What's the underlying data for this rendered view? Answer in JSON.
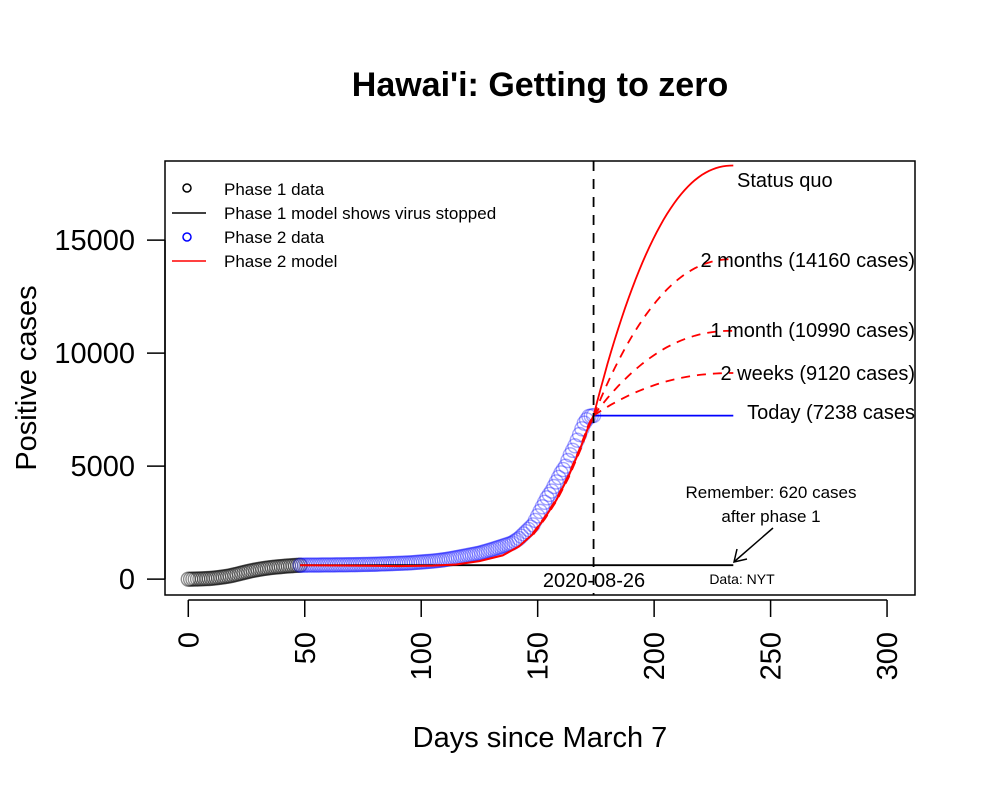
{
  "chart_data": {
    "type": "line",
    "title": "Hawai'i: Getting to zero",
    "xlabel": "Days since March 7",
    "ylabel": "Positive cases",
    "xlim": [
      -10,
      312
    ],
    "ylim": [
      -700,
      18500
    ],
    "xticks": [
      0,
      50,
      100,
      150,
      200,
      250,
      300
    ],
    "yticks": [
      0,
      5000,
      10000,
      15000
    ],
    "xtick_labels": [
      "0",
      "50",
      "100",
      "150",
      "200",
      "250",
      "300"
    ],
    "ytick_labels": [
      "0",
      "5000",
      "10000",
      "15000"
    ],
    "legend": {
      "position": "top-left",
      "entries": [
        {
          "label": "Phase 1 data",
          "style": "circle",
          "color": "#000000"
        },
        {
          "label": "Phase 1 model shows virus stopped",
          "style": "line",
          "color": "#000000"
        },
        {
          "label": "Phase 2 data",
          "style": "circle",
          "color": "#0000ff"
        },
        {
          "label": "Phase 2 model",
          "style": "line",
          "color": "#ff0000"
        }
      ]
    },
    "today_line": {
      "x": 174,
      "label": "2020-08-26"
    },
    "phase1_data": {
      "color": "#000000",
      "x": [
        0,
        3,
        6,
        9,
        12,
        15,
        18,
        21,
        24,
        27,
        30,
        33,
        36,
        39,
        42,
        45,
        48
      ],
      "y": [
        0,
        5,
        15,
        30,
        60,
        100,
        150,
        220,
        300,
        370,
        430,
        480,
        520,
        550,
        580,
        600,
        620
      ]
    },
    "phase1_model": {
      "color": "#000000",
      "x": [
        48,
        234
      ],
      "y": [
        620,
        620
      ]
    },
    "phase2_data": {
      "color": "#0000ff",
      "x": [
        48,
        55,
        60,
        65,
        70,
        75,
        80,
        85,
        90,
        95,
        100,
        105,
        110,
        115,
        120,
        125,
        130,
        133,
        136,
        139,
        142,
        145,
        148,
        150,
        152,
        154,
        156,
        158,
        160,
        162,
        164,
        166,
        168,
        170,
        172,
        174
      ],
      "y": [
        620,
        625,
        630,
        635,
        640,
        650,
        660,
        680,
        700,
        720,
        760,
        800,
        860,
        950,
        1050,
        1150,
        1300,
        1400,
        1500,
        1600,
        1800,
        2100,
        2400,
        2800,
        3200,
        3600,
        3900,
        4300,
        4700,
        5000,
        5500,
        5900,
        6400,
        6900,
        7200,
        7238
      ]
    },
    "phase2_model": {
      "color": "#ff0000",
      "x": [
        48,
        70,
        90,
        105,
        115,
        125,
        135,
        142,
        148,
        153,
        158,
        163,
        168,
        172,
        174
      ],
      "y": [
        620,
        600,
        580,
        600,
        650,
        800,
        1050,
        1450,
        2000,
        2700,
        3500,
        4500,
        5700,
        6800,
        7238
      ]
    },
    "today_projection": {
      "label": "Today (7238 cases",
      "color": "#0000ff",
      "x": [
        174,
        234
      ],
      "y": [
        7238,
        7238
      ]
    },
    "projections": [
      {
        "label": "Status quo",
        "color": "#ff0000",
        "dash": false,
        "final": 18300
      },
      {
        "label": "2 months (14160 cases)",
        "color": "#ff0000",
        "dash": true,
        "final": 14160
      },
      {
        "label": "1 month (10990 cases)",
        "color": "#ff0000",
        "dash": true,
        "final": 10990
      },
      {
        "label": "2 weeks (9120 cases)",
        "color": "#ff0000",
        "dash": true,
        "final": 9120
      }
    ],
    "projection_x": [
      174,
      234
    ],
    "annotations": {
      "remember_line1": "Remember: 620 cases",
      "remember_line2": "after phase 1",
      "source": "Data: NYT"
    }
  }
}
